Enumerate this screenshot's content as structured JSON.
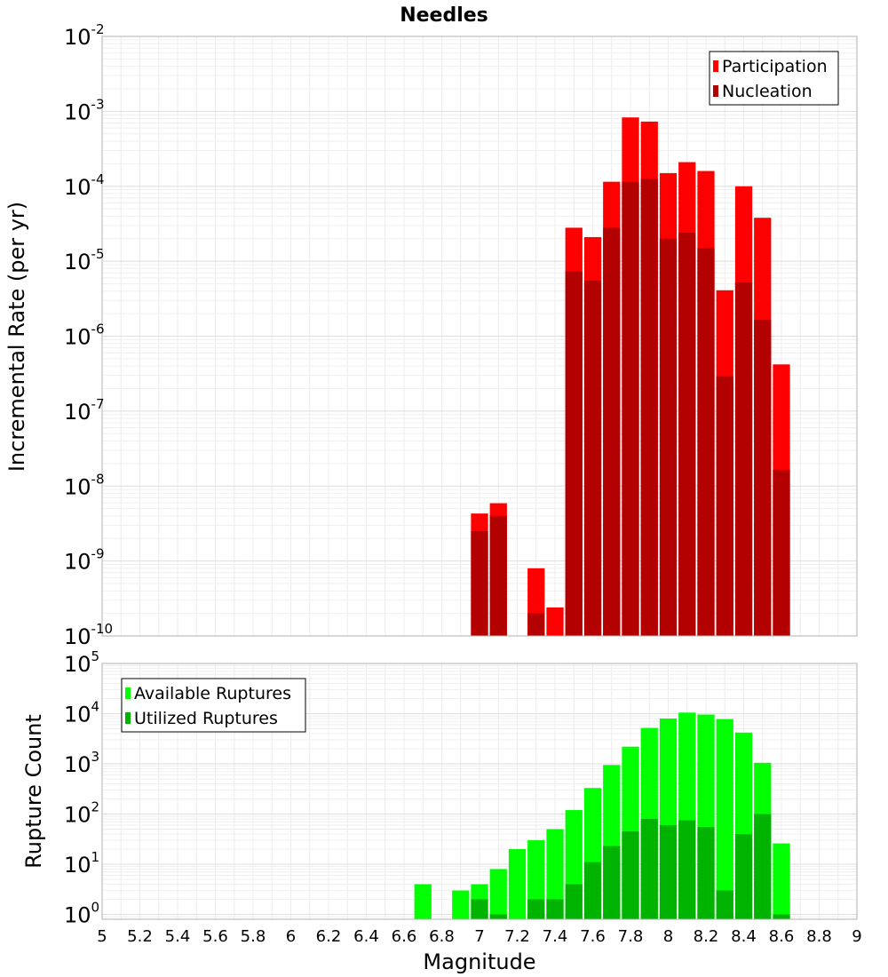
{
  "chart_data": [
    {
      "type": "bar",
      "title": "Needles",
      "xlabel": "Magnitude",
      "ylabel": "Incremental Rate (per yr)",
      "yscale": "log",
      "ylim": [
        1e-10,
        0.01
      ],
      "xlim": [
        5,
        9
      ],
      "x": [
        7.0,
        7.1,
        7.3,
        7.4,
        7.5,
        7.6,
        7.7,
        7.8,
        7.9,
        8.0,
        8.1,
        8.2,
        8.3,
        8.4,
        8.5,
        8.6
      ],
      "series": [
        {
          "name": "Participation",
          "color": "#ff0000",
          "values": [
            4.3e-09,
            5.9e-09,
            8e-10,
            2.4e-10,
            2.8e-05,
            2.1e-05,
            0.000115,
            0.00083,
            0.00073,
            0.00015,
            0.00021,
            0.00016,
            4.1e-06,
            0.0001,
            3.8e-05,
            4.2e-07
          ]
        },
        {
          "name": "Nucleation",
          "color": "#b30000",
          "values": [
            2.5e-09,
            4e-09,
            2e-10,
            null,
            7.3e-06,
            5.5e-06,
            2.8e-05,
            0.000115,
            0.000125,
            2e-05,
            2.4e-05,
            1.5e-05,
            2.9e-07,
            5.2e-06,
            1.65e-06,
            1.65e-08
          ]
        }
      ],
      "legend": "top-right",
      "grid": true,
      "x_ticks": [
        "5",
        "5.2",
        "5.4",
        "5.6",
        "5.8",
        "6",
        "6.2",
        "6.4",
        "6.6",
        "6.8",
        "7",
        "7.2",
        "7.4",
        "7.6",
        "7.8",
        "8",
        "8.2",
        "8.4",
        "8.6",
        "8.8",
        "9"
      ],
      "y_ticks": [
        {
          "base": "10",
          "exp": "-2"
        },
        {
          "base": "10",
          "exp": "-3"
        },
        {
          "base": "10",
          "exp": "-4"
        },
        {
          "base": "10",
          "exp": "-5"
        },
        {
          "base": "10",
          "exp": "-6"
        },
        {
          "base": "10",
          "exp": "-7"
        },
        {
          "base": "10",
          "exp": "-8"
        },
        {
          "base": "10",
          "exp": "-9"
        },
        {
          "base": "10",
          "exp": "-10"
        }
      ]
    },
    {
      "type": "bar",
      "xlabel": "Magnitude",
      "ylabel": "Rupture Count",
      "yscale": "log",
      "ylim": [
        0.8,
        100000
      ],
      "xlim": [
        5,
        9
      ],
      "x": [
        6.7,
        6.9,
        7.0,
        7.1,
        7.2,
        7.3,
        7.4,
        7.5,
        7.6,
        7.7,
        7.8,
        7.9,
        8.0,
        8.1,
        8.2,
        8.3,
        8.4,
        8.5,
        8.6
      ],
      "series": [
        {
          "name": "Available Ruptures",
          "color": "#00ff00",
          "values": [
            4,
            3,
            4,
            8,
            20,
            30,
            50,
            120,
            330,
            950,
            2200,
            5200,
            8000,
            10500,
            9600,
            7800,
            4200,
            1050,
            26
          ]
        },
        {
          "name": "Utilized Ruptures",
          "color": "#00b300",
          "values": [
            null,
            null,
            2,
            1,
            null,
            2,
            2,
            4,
            11,
            23,
            45,
            80,
            60,
            75,
            55,
            3,
            40,
            100,
            1
          ]
        }
      ],
      "legend": "top-left",
      "grid": true,
      "x_ticks": [
        "5",
        "5.2",
        "5.4",
        "5.6",
        "5.8",
        "6",
        "6.2",
        "6.4",
        "6.6",
        "6.8",
        "7",
        "7.2",
        "7.4",
        "7.6",
        "7.8",
        "8",
        "8.2",
        "8.4",
        "8.6",
        "8.8",
        "9"
      ],
      "y_ticks": [
        {
          "base": "10",
          "exp": "5"
        },
        {
          "base": "10",
          "exp": "4"
        },
        {
          "base": "10",
          "exp": "3"
        },
        {
          "base": "10",
          "exp": "2"
        },
        {
          "base": "10",
          "exp": "1"
        },
        {
          "base": "10",
          "exp": "0"
        }
      ]
    }
  ]
}
